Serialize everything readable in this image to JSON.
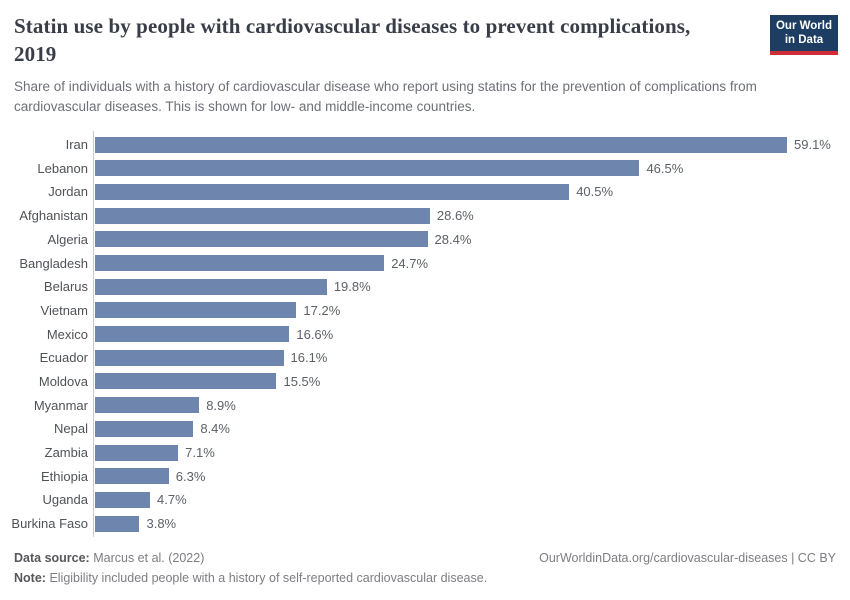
{
  "header": {
    "title": "Statin use by people with cardiovascular diseases to prevent complications, 2019",
    "subtitle": "Share of individuals with a history of cardiovascular disease who report using statins for the prevention of complications from cardiovascular diseases. This is shown for low- and middle-income countries.",
    "logo": {
      "line1": "Our World",
      "line2": "in Data"
    }
  },
  "chart_data": {
    "type": "bar",
    "orientation": "horizontal",
    "title": "Statin use by people with cardiovascular diseases to prevent complications, 2019",
    "categories": [
      "Iran",
      "Lebanon",
      "Jordan",
      "Afghanistan",
      "Algeria",
      "Bangladesh",
      "Belarus",
      "Vietnam",
      "Mexico",
      "Ecuador",
      "Moldova",
      "Myanmar",
      "Nepal",
      "Zambia",
      "Ethiopia",
      "Uganda",
      "Burkina Faso"
    ],
    "values": [
      59.1,
      46.5,
      40.5,
      28.6,
      28.4,
      24.7,
      19.8,
      17.2,
      16.6,
      16.1,
      15.5,
      8.9,
      8.4,
      7.1,
      6.3,
      4.7,
      3.8
    ],
    "value_labels": [
      "59.1%",
      "46.5%",
      "40.5%",
      "28.6%",
      "28.4%",
      "24.7%",
      "19.8%",
      "17.2%",
      "16.6%",
      "16.1%",
      "15.5%",
      "8.9%",
      "8.4%",
      "7.1%",
      "6.3%",
      "4.7%",
      "3.8%"
    ],
    "unit": "%",
    "xlim": [
      0,
      60
    ],
    "grid": false,
    "legend": false,
    "bar_color": "#6e85ae"
  },
  "footer": {
    "data_source_label": "Data source:",
    "data_source_value": "Marcus et al. (2022)",
    "note_label": "Note:",
    "note_value": "Eligibility included people with a history of self-reported cardiovascular disease.",
    "link": "OurWorldinData.org/cardiovascular-diseases | CC BY"
  },
  "colors": {
    "bar": "#6e85ae",
    "title_text": "#393d47",
    "subtitle_text": "#6d7077",
    "logo_background": "#1d3d63",
    "logo_underline": "#cd2d37",
    "axis_line": "#c9cace"
  }
}
